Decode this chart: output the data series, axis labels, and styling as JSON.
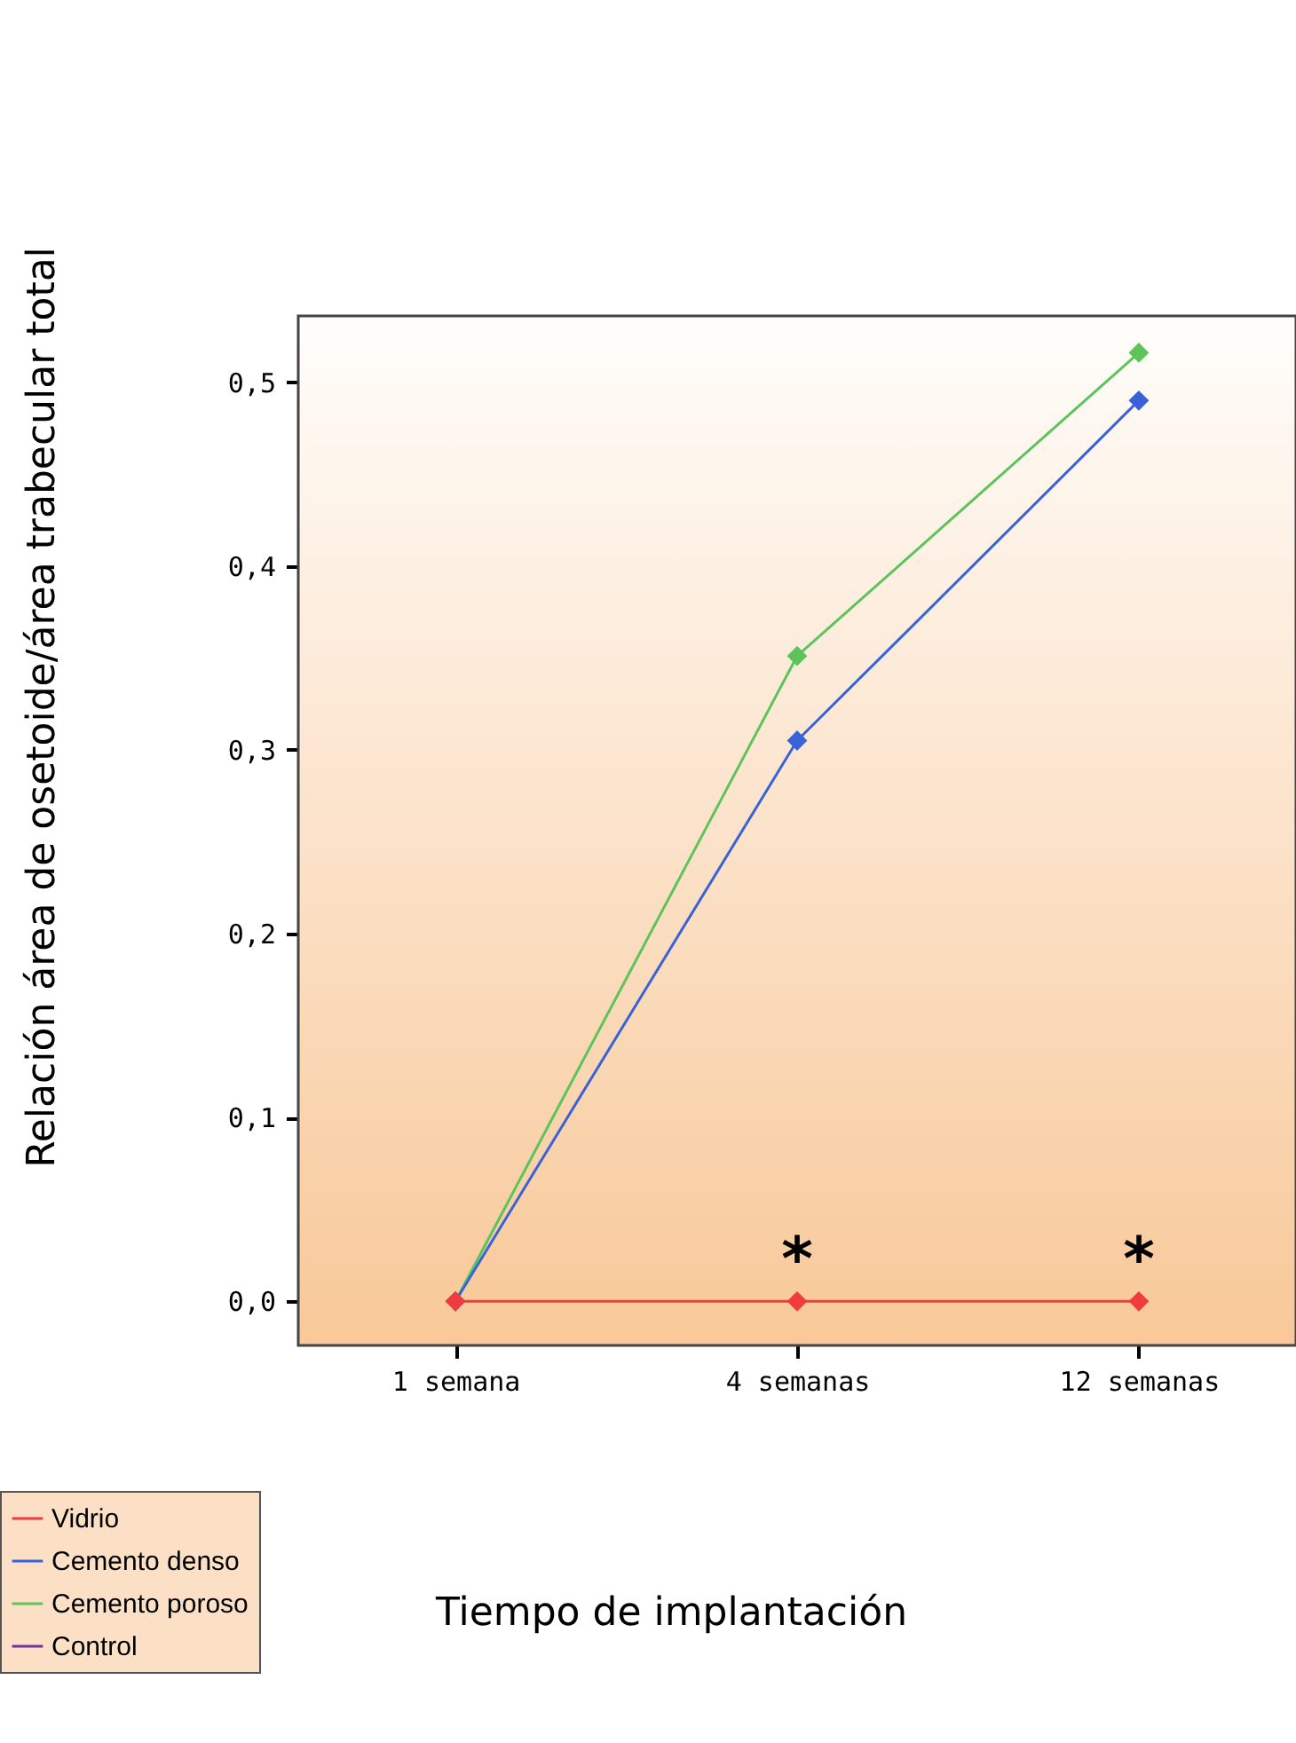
{
  "chart_data": {
    "type": "line",
    "xlabel": "Tiempo de implantación",
    "ylabel": "Relación área de osetoide/área trabecular total",
    "categories": [
      "1 semana",
      "4 semanas",
      "12 semanas"
    ],
    "series": [
      {
        "name": "Vidrio",
        "color": "#f03c3c",
        "values": [
          0,
          0,
          0
        ]
      },
      {
        "name": "Cemento denso",
        "color": "#3a62d8",
        "values": [
          0,
          0.305,
          0.49
        ]
      },
      {
        "name": "Cemento poroso",
        "color": "#5cc45a",
        "values": [
          0,
          0.351,
          0.516
        ]
      },
      {
        "name": "Control",
        "color": "#7030a0",
        "values": [
          null,
          null,
          null
        ]
      }
    ],
    "ylim": [
      -0.024,
      0.536
    ],
    "yticks": [
      {
        "value": 0,
        "label": "0,0"
      },
      {
        "value": 0.1,
        "label": "0,1"
      },
      {
        "value": 0.2,
        "label": "0,2"
      },
      {
        "value": 0.3,
        "label": "0,3"
      },
      {
        "value": 0.4,
        "label": "0,4"
      },
      {
        "value": 0.5,
        "label": "0,5"
      }
    ],
    "annotations": [
      {
        "text": "*",
        "x": "4 semanas",
        "y": 0
      },
      {
        "text": "*",
        "x": "12 semanas",
        "y": 0
      }
    ],
    "marker": "diamond",
    "line_style": "solid",
    "legend": "bottom left"
  }
}
